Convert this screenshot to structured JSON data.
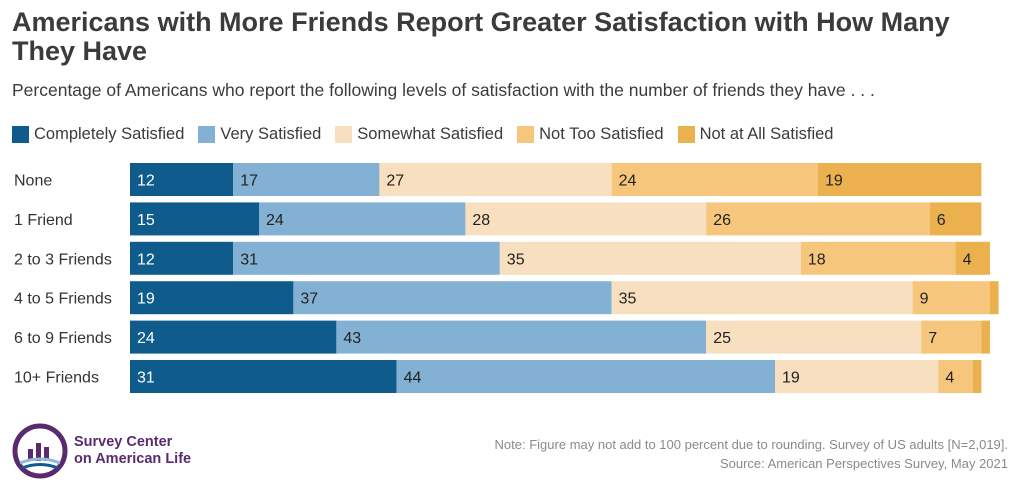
{
  "title": "Americans with More Friends Report Greater Satisfaction with How Many They Have",
  "subtitle": "Percentage of Americans who report the following levels of satisfaction with the number of friends they have . . .",
  "logo": {
    "line1": "Survey Center",
    "line2": "on American Life"
  },
  "notes": {
    "line1": "Note: Figure may not add to 100 percent due to rounding. Survey of US adults [N=2,019].",
    "line2": "Source: American Perspectives Survey, May 2021"
  },
  "chart_data": {
    "type": "bar",
    "orientation": "horizontal",
    "stacked": true,
    "categories": [
      "None",
      "1 Friend",
      "2 to 3 Friends",
      "4 to 5 Friends",
      "6 to 9 Friends",
      "10+ Friends"
    ],
    "series": [
      {
        "name": "Completely Satisfied",
        "color": "#0f5c8c",
        "values": [
          12,
          15,
          12,
          19,
          24,
          31
        ]
      },
      {
        "name": "Very Satisfied",
        "color": "#82b1d4",
        "values": [
          17,
          24,
          31,
          37,
          43,
          44
        ]
      },
      {
        "name": "Somewhat Satisfied",
        "color": "#f7dfc0",
        "values": [
          27,
          28,
          35,
          35,
          25,
          19
        ]
      },
      {
        "name": "Not Too Satisfied",
        "color": "#f5c67b",
        "values": [
          24,
          26,
          18,
          9,
          7,
          4
        ]
      },
      {
        "name": "Not at All Satisfied",
        "color": "#ebb14f",
        "values": [
          19,
          6,
          4,
          1,
          1,
          1
        ]
      }
    ],
    "value_labels_hidden_below": 4,
    "legend_position": "top"
  }
}
